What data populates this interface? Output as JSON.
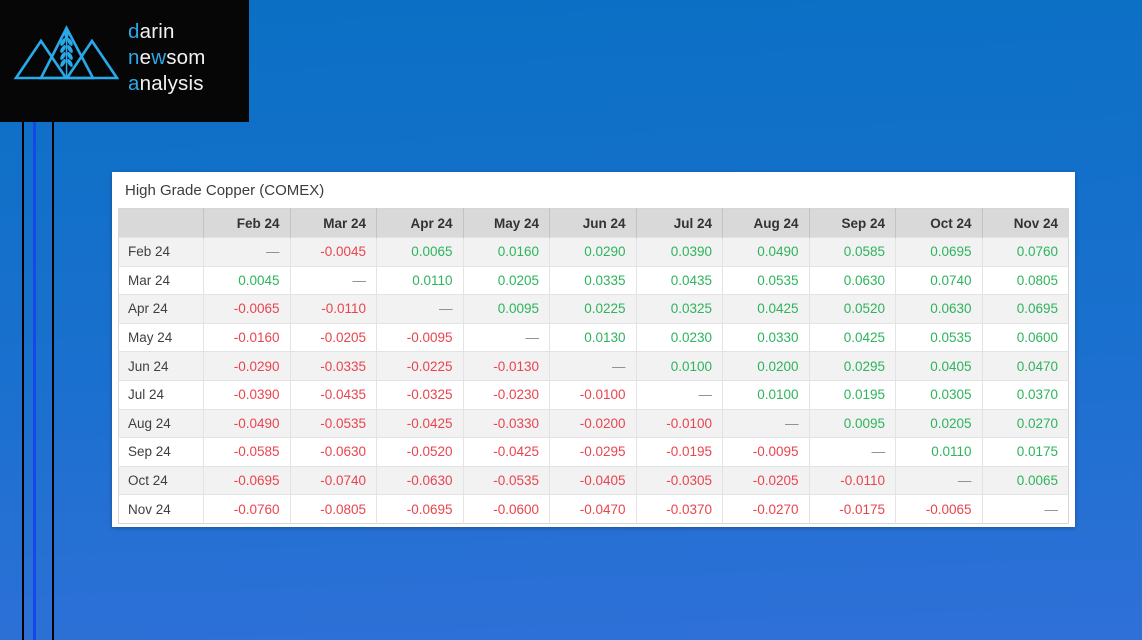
{
  "brand": {
    "name": "darin newsom analysis",
    "accent_color": "#29a9e9",
    "lines": [
      {
        "accent": "d",
        "rest": "arin"
      },
      {
        "accent1": "n",
        "mid": "e",
        "accent2": "w",
        "rest": "som"
      },
      {
        "accent": "a",
        "rest": "nalysis"
      }
    ]
  },
  "background": {
    "top": "#0a70c4",
    "bottom": "#2f70d8",
    "stripe_blue": "#1548ea"
  },
  "panel": {
    "title": "High Grade Copper (COMEX)"
  },
  "table": {
    "positive_color": "#2db45c",
    "negative_color": "#e9444f",
    "dash_color": "#8c8c8c",
    "columns": [
      "Feb 24",
      "Mar 24",
      "Apr 24",
      "May 24",
      "Jun 24",
      "Jul 24",
      "Aug 24",
      "Sep 24",
      "Oct 24",
      "Nov 24"
    ],
    "rows": [
      {
        "label": "Feb 24",
        "values": [
          "—",
          "-0.0045",
          "0.0065",
          "0.0160",
          "0.0290",
          "0.0390",
          "0.0490",
          "0.0585",
          "0.0695",
          "0.0760"
        ]
      },
      {
        "label": "Mar 24",
        "values": [
          "0.0045",
          "—",
          "0.0110",
          "0.0205",
          "0.0335",
          "0.0435",
          "0.0535",
          "0.0630",
          "0.0740",
          "0.0805"
        ]
      },
      {
        "label": "Apr 24",
        "values": [
          "-0.0065",
          "-0.0110",
          "—",
          "0.0095",
          "0.0225",
          "0.0325",
          "0.0425",
          "0.0520",
          "0.0630",
          "0.0695"
        ]
      },
      {
        "label": "May 24",
        "values": [
          "-0.0160",
          "-0.0205",
          "-0.0095",
          "—",
          "0.0130",
          "0.0230",
          "0.0330",
          "0.0425",
          "0.0535",
          "0.0600"
        ]
      },
      {
        "label": "Jun 24",
        "values": [
          "-0.0290",
          "-0.0335",
          "-0.0225",
          "-0.0130",
          "—",
          "0.0100",
          "0.0200",
          "0.0295",
          "0.0405",
          "0.0470"
        ]
      },
      {
        "label": "Jul 24",
        "values": [
          "-0.0390",
          "-0.0435",
          "-0.0325",
          "-0.0230",
          "-0.0100",
          "—",
          "0.0100",
          "0.0195",
          "0.0305",
          "0.0370"
        ]
      },
      {
        "label": "Aug 24",
        "values": [
          "-0.0490",
          "-0.0535",
          "-0.0425",
          "-0.0330",
          "-0.0200",
          "-0.0100",
          "—",
          "0.0095",
          "0.0205",
          "0.0270"
        ]
      },
      {
        "label": "Sep 24",
        "values": [
          "-0.0585",
          "-0.0630",
          "-0.0520",
          "-0.0425",
          "-0.0295",
          "-0.0195",
          "-0.0095",
          "—",
          "0.0110",
          "0.0175"
        ]
      },
      {
        "label": "Oct 24",
        "values": [
          "-0.0695",
          "-0.0740",
          "-0.0630",
          "-0.0535",
          "-0.0405",
          "-0.0305",
          "-0.0205",
          "-0.0110",
          "—",
          "0.0065"
        ]
      },
      {
        "label": "Nov 24",
        "values": [
          "-0.0760",
          "-0.0805",
          "-0.0695",
          "-0.0600",
          "-0.0470",
          "-0.0370",
          "-0.0270",
          "-0.0175",
          "-0.0065",
          "—"
        ]
      }
    ]
  }
}
